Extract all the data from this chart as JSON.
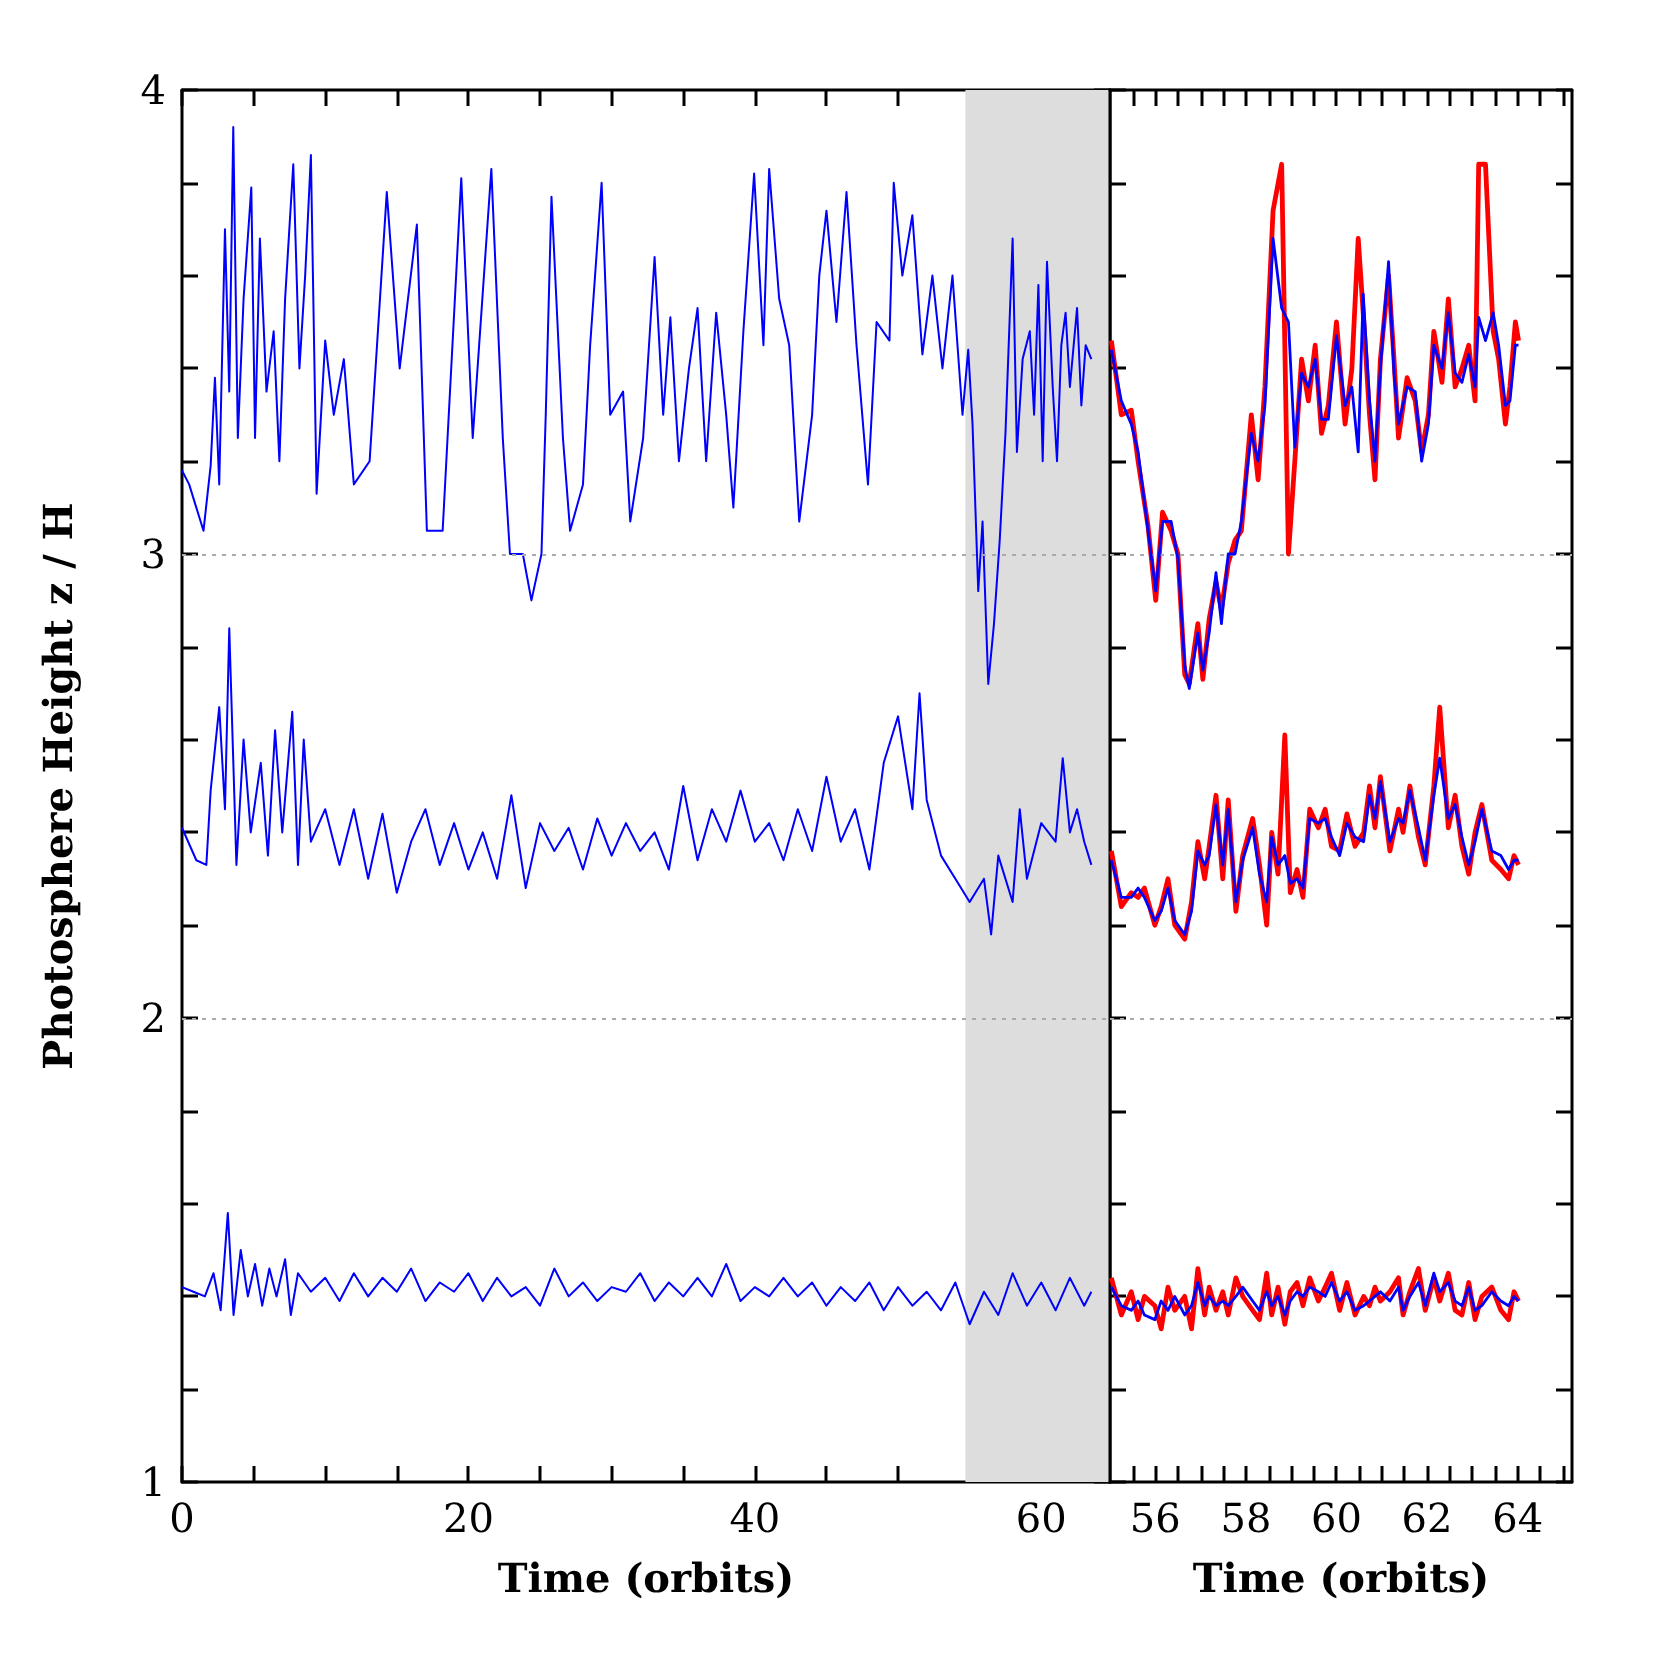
{
  "chart_data": [
    {
      "type": "line",
      "xlabel": "Time (orbits)",
      "ylabel": "Photosphere Height z / H",
      "xlim": [
        0,
        64.8
      ],
      "ylim": [
        1,
        4
      ],
      "xticks": [
        0,
        {
          "value": 5,
          "label": null
        },
        {
          "value": 10,
          "label": null
        },
        {
          "value": 15,
          "label": null
        },
        20,
        {
          "value": 25,
          "label": null
        },
        {
          "value": 30,
          "label": null
        },
        {
          "value": 35,
          "label": null
        },
        40,
        {
          "value": 45,
          "label": null
        },
        {
          "value": 50,
          "label": null
        },
        {
          "value": 55,
          "label": null
        },
        60
      ],
      "yticks": [
        1,
        {
          "value": 1.2,
          "label": null
        },
        {
          "value": 1.4,
          "label": null
        },
        {
          "value": 1.6,
          "label": null
        },
        {
          "value": 1.8,
          "label": null
        },
        2,
        {
          "value": 2.2,
          "label": null
        },
        {
          "value": 2.4,
          "label": null
        },
        {
          "value": 2.6,
          "label": null
        },
        {
          "value": 2.8,
          "label": null
        },
        3,
        {
          "value": 3.2,
          "label": null
        },
        {
          "value": 3.4,
          "label": null
        },
        {
          "value": 3.6,
          "label": null
        },
        {
          "value": 3.8,
          "label": null
        },
        4
      ],
      "grid": false,
      "marker": "none",
      "ref_lines": [
        {
          "axis": "y",
          "value": 2,
          "color": "#aaaaaa",
          "line_style": "dotted"
        },
        {
          "axis": "y",
          "value": 3,
          "color": "#aaaaaa",
          "line_style": "dotted"
        }
      ],
      "bands": [
        {
          "axis": "x",
          "from": 54.7,
          "to": 64.8,
          "color": "#dddddd"
        }
      ],
      "series": [
        {
          "color": "#0000ff",
          "x": [
            0,
            0.5,
            1,
            1.5,
            2,
            2.3,
            2.6,
            3,
            3.3,
            3.58,
            3.9,
            4.3,
            4.84,
            5.1,
            5.44,
            5.9,
            6.4,
            6.8,
            7.2,
            7.77,
            8.2,
            8.6,
            9,
            9.4,
            10,
            10.6,
            11.3,
            12,
            13.1,
            14.3,
            15.2,
            16.4,
            17.1,
            18.2,
            19.5,
            20.3,
            21.6,
            22.4,
            22.9,
            23.8,
            24.4,
            25.1,
            25.4,
            25.8,
            26.6,
            27.1,
            28,
            28.5,
            29.3,
            29.9,
            30.8,
            31.3,
            32.2,
            33,
            33.6,
            34.1,
            34.7,
            35.4,
            36,
            36.6,
            37.3,
            38,
            38.5,
            39.2,
            39.95,
            40.6,
            41,
            41.7,
            42.4,
            43.1,
            44,
            44.5,
            45,
            45.7,
            46.4,
            47.1,
            47.9,
            48.5,
            49.4,
            49.7,
            50.3,
            51,
            51.7,
            52.4,
            53.1,
            53.8,
            54.5,
            54.9,
            55.2,
            55.6,
            55.9,
            56.3,
            56.7,
            57.1,
            57.5,
            58,
            58.3,
            58.7,
            59.2,
            59.5,
            59.8,
            60.1,
            60.4,
            60.8,
            61.1,
            61.4,
            61.7,
            62,
            62.5,
            62.8,
            63.1,
            63.5
          ],
          "values": [
            3.18,
            3.15,
            3.1,
            3.05,
            3.19,
            3.38,
            3.15,
            3.7,
            3.35,
            3.92,
            3.25,
            3.55,
            3.79,
            3.25,
            3.68,
            3.35,
            3.48,
            3.2,
            3.55,
            3.84,
            3.4,
            3.6,
            3.86,
            3.13,
            3.46,
            3.3,
            3.42,
            3.15,
            3.2,
            3.78,
            3.4,
            3.71,
            3.05,
            3.05,
            3.81,
            3.25,
            3.83,
            3.25,
            3.0,
            3.0,
            2.9,
            3.0,
            3.3,
            3.77,
            3.25,
            3.05,
            3.15,
            3.45,
            3.8,
            3.3,
            3.35,
            3.07,
            3.25,
            3.64,
            3.3,
            3.51,
            3.2,
            3.4,
            3.53,
            3.2,
            3.52,
            3.3,
            3.1,
            3.48,
            3.82,
            3.45,
            3.83,
            3.55,
            3.45,
            3.07,
            3.3,
            3.6,
            3.74,
            3.5,
            3.78,
            3.45,
            3.15,
            3.5,
            3.46,
            3.8,
            3.6,
            3.73,
            3.43,
            3.6,
            3.4,
            3.6,
            3.3,
            3.44,
            3.28,
            2.92,
            3.07,
            2.72,
            2.85,
            3.03,
            3.26,
            3.68,
            3.22,
            3.42,
            3.48,
            3.3,
            3.58,
            3.2,
            3.63,
            3.36,
            3.2,
            3.45,
            3.52,
            3.36,
            3.53,
            3.32,
            3.45,
            3.42
          ]
        },
        {
          "color": "#0000ff",
          "x": [
            0,
            1,
            1.7,
            2,
            2.6,
            3,
            3.3,
            3.8,
            4.3,
            4.8,
            5.5,
            6,
            6.5,
            7,
            7.7,
            8.1,
            8.5,
            9,
            10,
            11,
            12,
            13,
            14,
            15,
            16,
            17,
            18,
            19,
            20,
            21,
            22,
            23,
            24,
            25,
            26,
            27,
            28,
            29,
            30,
            31,
            32,
            33,
            34,
            35,
            36,
            37,
            38,
            39,
            40,
            41,
            42,
            43,
            44,
            45,
            46,
            47,
            48,
            49,
            50,
            51,
            51.5,
            52,
            53,
            54,
            55,
            56,
            56.5,
            57,
            58,
            58.5,
            59,
            60,
            61,
            61.5,
            62,
            62.5,
            63,
            63.5
          ],
          "values": [
            2.41,
            2.34,
            2.33,
            2.49,
            2.67,
            2.45,
            2.84,
            2.33,
            2.6,
            2.4,
            2.55,
            2.35,
            2.62,
            2.4,
            2.66,
            2.33,
            2.6,
            2.38,
            2.45,
            2.33,
            2.45,
            2.3,
            2.44,
            2.27,
            2.38,
            2.45,
            2.33,
            2.42,
            2.32,
            2.4,
            2.3,
            2.48,
            2.28,
            2.42,
            2.36,
            2.41,
            2.32,
            2.43,
            2.35,
            2.42,
            2.36,
            2.4,
            2.32,
            2.5,
            2.34,
            2.45,
            2.38,
            2.49,
            2.38,
            2.42,
            2.34,
            2.45,
            2.36,
            2.52,
            2.38,
            2.45,
            2.32,
            2.55,
            2.65,
            2.45,
            2.7,
            2.47,
            2.35,
            2.3,
            2.25,
            2.3,
            2.18,
            2.35,
            2.25,
            2.45,
            2.3,
            2.42,
            2.38,
            2.56,
            2.4,
            2.45,
            2.38,
            2.33
          ]
        },
        {
          "color": "#0000ff",
          "x": [
            0,
            0.8,
            1.6,
            2.2,
            2.7,
            3.2,
            3.6,
            4.1,
            4.6,
            5.1,
            5.6,
            6.1,
            6.6,
            7.2,
            7.6,
            8.1,
            9,
            10,
            11,
            12,
            13,
            14,
            15,
            16,
            17,
            18,
            19,
            20,
            21,
            22,
            23,
            24,
            25,
            26,
            27,
            28,
            29,
            30,
            31,
            32,
            33,
            34,
            35,
            36,
            37,
            38,
            39,
            40,
            41,
            42,
            43,
            44,
            45,
            46,
            47,
            48,
            49,
            50,
            51,
            52,
            53,
            54,
            55,
            56,
            57,
            58,
            59,
            60,
            61,
            62,
            63,
            63.5
          ],
          "values": [
            1.42,
            1.41,
            1.4,
            1.45,
            1.37,
            1.58,
            1.36,
            1.5,
            1.4,
            1.47,
            1.38,
            1.46,
            1.4,
            1.48,
            1.36,
            1.45,
            1.41,
            1.44,
            1.39,
            1.45,
            1.4,
            1.44,
            1.41,
            1.46,
            1.39,
            1.43,
            1.41,
            1.45,
            1.39,
            1.44,
            1.4,
            1.42,
            1.38,
            1.46,
            1.4,
            1.43,
            1.39,
            1.42,
            1.41,
            1.45,
            1.39,
            1.43,
            1.4,
            1.44,
            1.4,
            1.47,
            1.39,
            1.42,
            1.4,
            1.44,
            1.4,
            1.43,
            1.38,
            1.42,
            1.39,
            1.43,
            1.37,
            1.42,
            1.38,
            1.41,
            1.37,
            1.43,
            1.34,
            1.41,
            1.36,
            1.45,
            1.38,
            1.43,
            1.37,
            1.44,
            1.38,
            1.41
          ]
        }
      ]
    },
    {
      "type": "line",
      "xlabel": "Time (orbits)",
      "xlim": [
        55,
        65.2
      ],
      "ylim": [
        1,
        4
      ],
      "tick_labels": "x",
      "xticks": [
        {
          "value": 55.5,
          "label": null
        },
        56,
        {
          "value": 56.5,
          "label": null
        },
        {
          "value": 57,
          "label": null
        },
        {
          "value": 57.5,
          "label": null
        },
        58,
        {
          "value": 58.5,
          "label": null
        },
        {
          "value": 59,
          "label": null
        },
        {
          "value": 59.5,
          "label": null
        },
        60,
        {
          "value": 60.5,
          "label": null
        },
        {
          "value": 61,
          "label": null
        },
        {
          "value": 61.5,
          "label": null
        },
        62,
        {
          "value": 62.5,
          "label": null
        },
        {
          "value": 63,
          "label": null
        },
        {
          "value": 63.5,
          "label": null
        },
        64,
        {
          "value": 64.5,
          "label": null
        },
        {
          "value": 65,
          "label": null
        }
      ],
      "yticks": [
        1,
        {
          "value": 1.2,
          "label": null
        },
        {
          "value": 1.4,
          "label": null
        },
        {
          "value": 1.6,
          "label": null
        },
        {
          "value": 1.8,
          "label": null
        },
        2,
        {
          "value": 2.2,
          "label": null
        },
        {
          "value": 2.4,
          "label": null
        },
        {
          "value": 2.6,
          "label": null
        },
        {
          "value": 2.8,
          "label": null
        },
        3,
        {
          "value": 3.2,
          "label": null
        },
        {
          "value": 3.4,
          "label": null
        },
        {
          "value": 3.6,
          "label": null
        },
        {
          "value": 3.8,
          "label": null
        },
        4
      ],
      "grid": false,
      "marker": "none",
      "ref_lines": [
        {
          "axis": "y",
          "value": 2,
          "color": "#aaaaaa",
          "line_style": "dotted"
        },
        {
          "axis": "y",
          "value": 3,
          "color": "#aaaaaa",
          "line_style": "dotted"
        }
      ],
      "series": [
        {
          "color": "#ff0000",
          "x": [
            55.03,
            55.25,
            55.47,
            55.62,
            55.84,
            56.01,
            56.16,
            56.35,
            56.5,
            56.65,
            56.75,
            56.94,
            57.05,
            57.19,
            57.34,
            57.46,
            57.61,
            57.76,
            57.9,
            58.12,
            58.27,
            58.42,
            58.6,
            58.79,
            58.94,
            59.08,
            59.23,
            59.38,
            59.53,
            59.67,
            59.82,
            60.0,
            60.19,
            60.34,
            60.48,
            60.59,
            60.73,
            60.85,
            60.97,
            61.15,
            61.27,
            61.37,
            61.56,
            61.74,
            61.88,
            62.03,
            62.15,
            62.33,
            62.47,
            62.62,
            62.77,
            62.92,
            63.06,
            63.14,
            63.29,
            63.46,
            63.58,
            63.73,
            63.83,
            63.95,
            64.02
          ],
          "values": [
            3.46,
            3.3,
            3.31,
            3.2,
            3.06,
            2.9,
            3.09,
            3.05,
            3.0,
            2.74,
            2.72,
            2.85,
            2.73,
            2.86,
            2.94,
            2.88,
            2.98,
            3.03,
            3.05,
            3.3,
            3.16,
            3.36,
            3.74,
            3.84,
            3.0,
            3.2,
            3.42,
            3.33,
            3.45,
            3.26,
            3.32,
            3.5,
            3.28,
            3.4,
            3.68,
            3.52,
            3.3,
            3.16,
            3.42,
            3.6,
            3.42,
            3.25,
            3.38,
            3.33,
            3.22,
            3.3,
            3.48,
            3.37,
            3.55,
            3.36,
            3.4,
            3.45,
            3.33,
            3.84,
            3.84,
            3.48,
            3.42,
            3.28,
            3.36,
            3.5,
            3.46
          ]
        },
        {
          "color": "#ff0000",
          "x": [
            55.03,
            55.25,
            55.47,
            55.62,
            55.76,
            55.99,
            56.13,
            56.28,
            56.43,
            56.65,
            56.8,
            56.94,
            57.09,
            57.19,
            57.34,
            57.49,
            57.61,
            57.78,
            57.93,
            58.15,
            58.3,
            58.46,
            58.57,
            58.71,
            58.86,
            58.98,
            59.13,
            59.26,
            59.41,
            59.6,
            59.75,
            59.89,
            60.07,
            60.23,
            60.41,
            60.6,
            60.73,
            60.85,
            60.97,
            61.18,
            61.37,
            61.47,
            61.62,
            61.81,
            61.96,
            62.15,
            62.28,
            62.47,
            62.62,
            62.77,
            62.92,
            63.06,
            63.21,
            63.43,
            63.63,
            63.8,
            63.92,
            64.02
          ],
          "values": [
            2.36,
            2.24,
            2.27,
            2.26,
            2.28,
            2.2,
            2.24,
            2.3,
            2.2,
            2.17,
            2.25,
            2.38,
            2.3,
            2.37,
            2.48,
            2.3,
            2.47,
            2.23,
            2.35,
            2.43,
            2.33,
            2.2,
            2.4,
            2.31,
            2.61,
            2.27,
            2.32,
            2.26,
            2.45,
            2.41,
            2.45,
            2.37,
            2.36,
            2.44,
            2.37,
            2.4,
            2.5,
            2.41,
            2.52,
            2.36,
            2.45,
            2.4,
            2.5,
            2.39,
            2.33,
            2.5,
            2.67,
            2.41,
            2.48,
            2.37,
            2.31,
            2.4,
            2.46,
            2.34,
            2.32,
            2.3,
            2.35,
            2.33
          ]
        },
        {
          "color": "#ff0000",
          "x": [
            55.03,
            55.25,
            55.47,
            55.62,
            55.76,
            55.99,
            56.13,
            56.28,
            56.43,
            56.65,
            56.8,
            56.94,
            57.09,
            57.19,
            57.34,
            57.49,
            57.61,
            57.78,
            57.93,
            58.15,
            58.3,
            58.46,
            58.57,
            58.71,
            58.86,
            58.98,
            59.13,
            59.26,
            59.41,
            59.6,
            59.75,
            59.89,
            60.07,
            60.23,
            60.41,
            60.6,
            60.73,
            60.85,
            60.97,
            61.18,
            61.37,
            61.47,
            61.62,
            61.81,
            61.96,
            62.15,
            62.28,
            62.47,
            62.62,
            62.77,
            62.92,
            63.06,
            63.21,
            63.43,
            63.63,
            63.8,
            63.92,
            64.02
          ],
          "values": [
            1.44,
            1.36,
            1.41,
            1.35,
            1.4,
            1.38,
            1.33,
            1.42,
            1.37,
            1.4,
            1.33,
            1.46,
            1.36,
            1.42,
            1.37,
            1.41,
            1.36,
            1.44,
            1.4,
            1.37,
            1.35,
            1.45,
            1.36,
            1.42,
            1.34,
            1.41,
            1.43,
            1.38,
            1.44,
            1.39,
            1.42,
            1.45,
            1.37,
            1.43,
            1.36,
            1.4,
            1.38,
            1.42,
            1.39,
            1.41,
            1.44,
            1.36,
            1.41,
            1.46,
            1.37,
            1.44,
            1.39,
            1.45,
            1.37,
            1.36,
            1.43,
            1.35,
            1.4,
            1.42,
            1.37,
            1.35,
            1.41,
            1.39
          ]
        },
        {
          "color": "#0000ff",
          "x": [
            55.03,
            55.25,
            55.47,
            55.62,
            55.84,
            56.01,
            56.16,
            56.35,
            56.5,
            56.65,
            56.75,
            56.94,
            57.05,
            57.19,
            57.34,
            57.46,
            57.61,
            57.76,
            57.9,
            58.12,
            58.27,
            58.42,
            58.6,
            58.79,
            58.94,
            59.08,
            59.23,
            59.38,
            59.53,
            59.67,
            59.82,
            60.0,
            60.19,
            60.34,
            60.48,
            60.59,
            60.73,
            60.85,
            60.97,
            61.15,
            61.27,
            61.37,
            61.56,
            61.74,
            61.88,
            62.03,
            62.15,
            62.33,
            62.47,
            62.62,
            62.77,
            62.92,
            63.06,
            63.14,
            63.29,
            63.46,
            63.58,
            63.73,
            63.83,
            63.95,
            64.02
          ],
          "values": [
            3.44,
            3.33,
            3.28,
            3.22,
            3.05,
            2.92,
            3.07,
            3.07,
            2.99,
            2.76,
            2.71,
            2.83,
            2.75,
            2.83,
            2.96,
            2.85,
            3.0,
            3.0,
            3.07,
            3.26,
            3.2,
            3.32,
            3.68,
            3.53,
            3.5,
            3.23,
            3.39,
            3.36,
            3.42,
            3.29,
            3.29,
            3.47,
            3.32,
            3.36,
            3.22,
            3.56,
            3.33,
            3.2,
            3.4,
            3.63,
            3.39,
            3.28,
            3.36,
            3.35,
            3.2,
            3.28,
            3.45,
            3.4,
            3.52,
            3.39,
            3.37,
            3.43,
            3.36,
            3.51,
            3.46,
            3.52,
            3.45,
            3.32,
            3.33,
            3.45,
            3.45
          ]
        },
        {
          "color": "#0000ff",
          "x": [
            55.03,
            55.25,
            55.47,
            55.62,
            55.76,
            55.99,
            56.13,
            56.28,
            56.43,
            56.65,
            56.8,
            56.94,
            57.09,
            57.19,
            57.34,
            57.49,
            57.61,
            57.78,
            57.93,
            58.15,
            58.3,
            58.46,
            58.57,
            58.71,
            58.86,
            58.98,
            59.13,
            59.26,
            59.41,
            59.6,
            59.75,
            59.89,
            60.07,
            60.23,
            60.41,
            60.6,
            60.73,
            60.85,
            60.97,
            61.18,
            61.37,
            61.47,
            61.62,
            61.81,
            61.96,
            62.15,
            62.28,
            62.47,
            62.62,
            62.77,
            62.92,
            63.06,
            63.21,
            63.43,
            63.63,
            63.8,
            63.92,
            64.02
          ],
          "values": [
            2.34,
            2.26,
            2.26,
            2.28,
            2.26,
            2.21,
            2.23,
            2.28,
            2.21,
            2.18,
            2.23,
            2.36,
            2.33,
            2.35,
            2.46,
            2.33,
            2.45,
            2.25,
            2.34,
            2.41,
            2.31,
            2.25,
            2.39,
            2.33,
            2.35,
            2.29,
            2.3,
            2.28,
            2.43,
            2.42,
            2.43,
            2.39,
            2.35,
            2.42,
            2.39,
            2.38,
            2.48,
            2.43,
            2.51,
            2.38,
            2.43,
            2.42,
            2.49,
            2.41,
            2.34,
            2.48,
            2.56,
            2.43,
            2.46,
            2.39,
            2.33,
            2.38,
            2.45,
            2.36,
            2.35,
            2.32,
            2.34,
            2.34
          ]
        },
        {
          "color": "#0000ff",
          "x": [
            55.03,
            55.25,
            55.47,
            55.62,
            55.76,
            55.99,
            56.13,
            56.28,
            56.43,
            56.65,
            56.8,
            56.94,
            57.09,
            57.19,
            57.34,
            57.49,
            57.61,
            57.78,
            57.93,
            58.15,
            58.3,
            58.46,
            58.57,
            58.71,
            58.86,
            58.98,
            59.13,
            59.26,
            59.41,
            59.6,
            59.75,
            59.89,
            60.07,
            60.23,
            60.41,
            60.6,
            60.73,
            60.85,
            60.97,
            61.18,
            61.37,
            61.47,
            61.62,
            61.81,
            61.96,
            62.15,
            62.28,
            62.47,
            62.62,
            62.77,
            62.92,
            63.06,
            63.21,
            63.43,
            63.63,
            63.8,
            63.92,
            64.02
          ],
          "values": [
            1.42,
            1.38,
            1.37,
            1.39,
            1.36,
            1.35,
            1.39,
            1.37,
            1.4,
            1.36,
            1.38,
            1.43,
            1.38,
            1.4,
            1.38,
            1.39,
            1.38,
            1.4,
            1.42,
            1.39,
            1.37,
            1.41,
            1.38,
            1.4,
            1.36,
            1.39,
            1.41,
            1.4,
            1.42,
            1.41,
            1.4,
            1.43,
            1.39,
            1.41,
            1.37,
            1.38,
            1.39,
            1.4,
            1.41,
            1.39,
            1.42,
            1.37,
            1.4,
            1.43,
            1.38,
            1.45,
            1.41,
            1.43,
            1.39,
            1.38,
            1.42,
            1.37,
            1.38,
            1.41,
            1.39,
            1.38,
            1.4,
            1.39
          ]
        }
      ]
    }
  ]
}
